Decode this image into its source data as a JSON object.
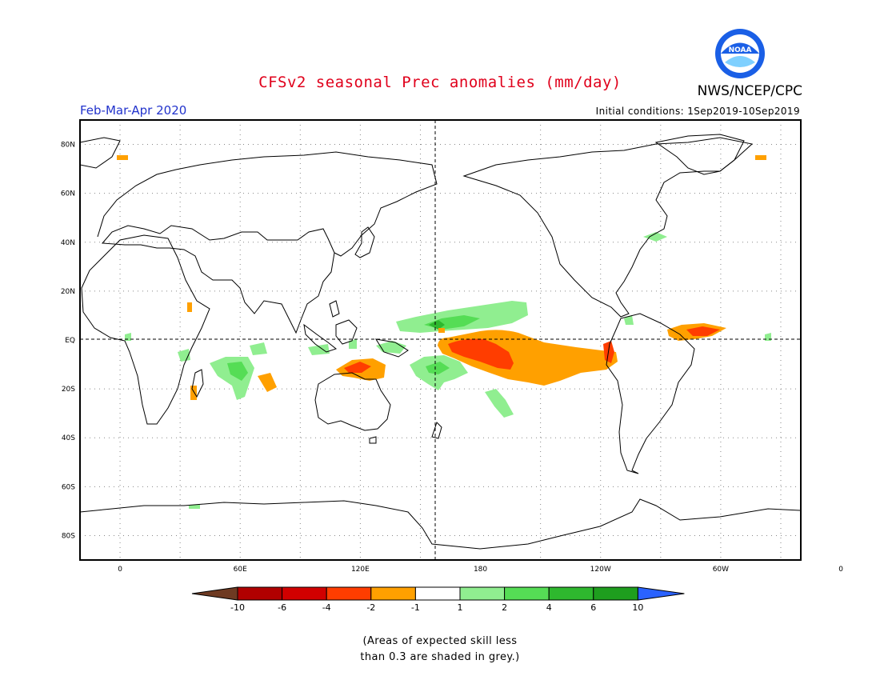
{
  "header": {
    "title": "CFSv2 seasonal Prec anomalies (mm/day)",
    "agency": "NWS/NCEP/CPC",
    "logo_text": "NOAA",
    "season": "Feb-Mar-Apr 2020",
    "initial_conditions": "Initial conditions: 1Sep2019-10Sep2019"
  },
  "map": {
    "projection": "cylindrical equidistant",
    "lon_range": [
      -20,
      340
    ],
    "lat_range": [
      -90,
      90
    ],
    "grid": "dotted",
    "lat_labels": [
      "80N",
      "60N",
      "40N",
      "20N",
      "EQ",
      "20S",
      "40S",
      "60S",
      "80S"
    ],
    "lon_labels": [
      "0",
      "60E",
      "120E",
      "180",
      "120W",
      "60W",
      "0"
    ],
    "reference_lines": [
      "EQ",
      "180"
    ]
  },
  "colorbar": {
    "labels": [
      "-10",
      "-6",
      "-4",
      "-2",
      "-1",
      "1",
      "2",
      "4",
      "6",
      "10"
    ],
    "colors": [
      "#6e3a22",
      "#b00000",
      "#d10000",
      "#ff3d00",
      "#ffa000",
      "#ffffff",
      "#90ee90",
      "#55dd55",
      "#2eb82e",
      "#1e9e1e",
      "#2a62ff"
    ]
  },
  "anomaly_palette": {
    "dry_1": "#ffa000",
    "dry_2": "#ff3d00",
    "wet_1": "#90ee90",
    "wet_2": "#55dd55",
    "wet_3": "#2eb82e"
  },
  "footnote": {
    "line1": "(Areas of expected skill less",
    "line2": "than 0.3 are shaded in grey.)"
  }
}
